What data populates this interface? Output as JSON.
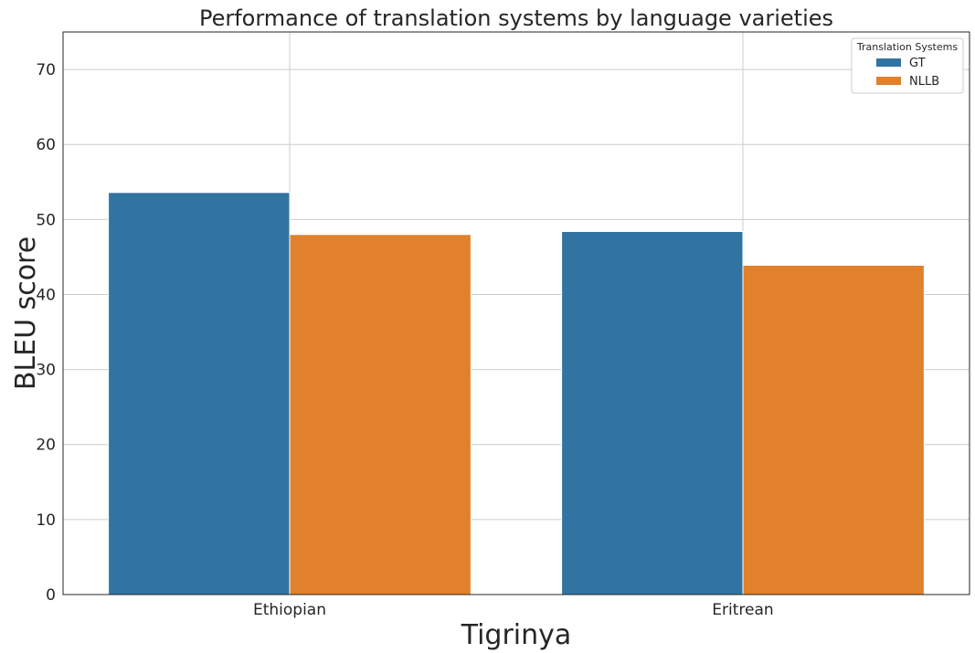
{
  "chart_data": {
    "type": "bar",
    "title": "Performance of translation systems by language varieties",
    "xlabel": "Tigrinya",
    "ylabel": "BLEU score",
    "categories": [
      "Ethiopian",
      "Eritrean"
    ],
    "series": [
      {
        "name": "GT",
        "color": "#3274a1",
        "values": [
          53.6,
          48.4
        ]
      },
      {
        "name": "NLLB",
        "color": "#e1812c",
        "values": [
          48.0,
          43.9
        ]
      }
    ],
    "ylim": [
      0,
      75
    ],
    "yticks": [
      0,
      10,
      20,
      30,
      40,
      50,
      60,
      70
    ],
    "grid": true,
    "legend": {
      "title": "Translation Systems",
      "position": "top-right"
    }
  }
}
